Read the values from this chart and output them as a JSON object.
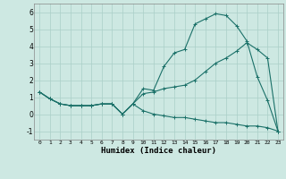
{
  "xlabel": "Humidex (Indice chaleur)",
  "ylabel": "",
  "xlim": [
    -0.5,
    23.5
  ],
  "ylim": [
    -1.5,
    6.5
  ],
  "yticks": [
    -1,
    0,
    1,
    2,
    3,
    4,
    5,
    6
  ],
  "xticks": [
    0,
    1,
    2,
    3,
    4,
    5,
    6,
    7,
    8,
    9,
    10,
    11,
    12,
    13,
    14,
    15,
    16,
    17,
    18,
    19,
    20,
    21,
    22,
    23
  ],
  "bg_color": "#cde8e2",
  "grid_color": "#aacfc8",
  "line_color": "#1a7068",
  "line1_x": [
    0,
    1,
    2,
    3,
    4,
    5,
    6,
    7,
    8,
    9,
    10,
    11,
    12,
    13,
    14,
    15,
    16,
    17,
    18,
    19,
    20,
    21,
    22,
    23
  ],
  "line1_y": [
    1.3,
    0.9,
    0.6,
    0.5,
    0.5,
    0.5,
    0.6,
    0.6,
    0.0,
    0.6,
    1.5,
    1.4,
    2.8,
    3.6,
    3.8,
    5.3,
    5.6,
    5.9,
    5.8,
    5.2,
    4.3,
    2.2,
    0.8,
    -1.0
  ],
  "line2_x": [
    0,
    1,
    2,
    3,
    4,
    5,
    6,
    7,
    8,
    9,
    10,
    11,
    12,
    13,
    14,
    15,
    16,
    17,
    18,
    19,
    20,
    21,
    22,
    23
  ],
  "line2_y": [
    1.3,
    0.9,
    0.6,
    0.5,
    0.5,
    0.5,
    0.6,
    0.6,
    0.0,
    0.6,
    1.2,
    1.3,
    1.5,
    1.6,
    1.7,
    2.0,
    2.5,
    3.0,
    3.3,
    3.7,
    4.2,
    3.8,
    3.3,
    -1.0
  ],
  "line3_x": [
    0,
    1,
    2,
    3,
    4,
    5,
    6,
    7,
    8,
    9,
    10,
    11,
    12,
    13,
    14,
    15,
    16,
    17,
    18,
    19,
    20,
    21,
    22,
    23
  ],
  "line3_y": [
    1.3,
    0.9,
    0.6,
    0.5,
    0.5,
    0.5,
    0.6,
    0.6,
    0.0,
    0.6,
    0.2,
    0.0,
    -0.1,
    -0.2,
    -0.2,
    -0.3,
    -0.4,
    -0.5,
    -0.5,
    -0.6,
    -0.7,
    -0.7,
    -0.8,
    -1.0
  ]
}
